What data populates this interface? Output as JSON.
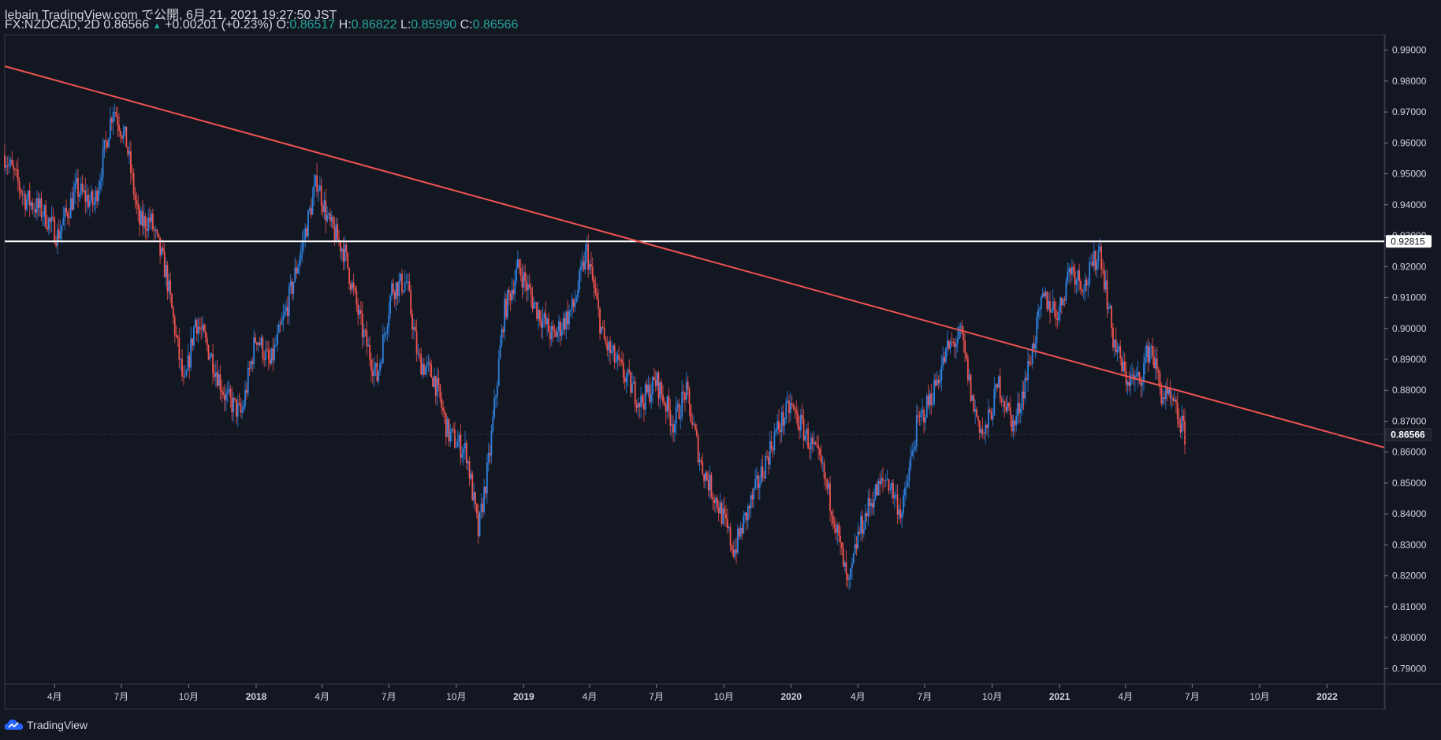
{
  "header": {
    "publish_line": "lebain TradingView.com で公開, 6月 21, 2021 19:27:50 JST",
    "symbol": "FX:NZDCAD, 2D",
    "last": "0.86566",
    "up_arrow": "▲",
    "change": "+0.00201 (+0.23%)",
    "o_label": "O:",
    "o_value": "0.86517",
    "h_label": "H:",
    "h_value": "0.86822",
    "l_label": "L:",
    "l_value": "0.85990",
    "c_label": "C:",
    "c_value": "0.86566"
  },
  "footer": {
    "brand": "TradingView",
    "logo_icon": "tradingview-logo-icon"
  },
  "colors": {
    "background": "#131722",
    "up": "#2f82e0",
    "down": "#ef5350",
    "trendline": "#ef5350",
    "hline": "#ffffff",
    "text": "#d1d4dc"
  },
  "chart_data": {
    "type": "candlestick",
    "ylim": [
      0.785,
      0.995
    ],
    "xlim": [
      "2017-01-23",
      "2022-03-20"
    ],
    "price_ticks": [
      "0.99000",
      "0.98000",
      "0.97000",
      "0.96000",
      "0.95000",
      "0.94000",
      "0.93000",
      "0.92000",
      "0.91000",
      "0.90000",
      "0.89000",
      "0.88000",
      "0.87000",
      "0.86000",
      "0.85000",
      "0.84000",
      "0.83000",
      "0.82000",
      "0.81000",
      "0.80000",
      "0.79000"
    ],
    "time_ticks": [
      {
        "label": "4月",
        "date": "2017-04-01",
        "bold": false
      },
      {
        "label": "7月",
        "date": "2017-07-01",
        "bold": false
      },
      {
        "label": "10月",
        "date": "2017-10-01",
        "bold": false
      },
      {
        "label": "2018",
        "date": "2018-01-01",
        "bold": true
      },
      {
        "label": "4月",
        "date": "2018-04-01",
        "bold": false
      },
      {
        "label": "7月",
        "date": "2018-07-01",
        "bold": false
      },
      {
        "label": "10月",
        "date": "2018-10-01",
        "bold": false
      },
      {
        "label": "2019",
        "date": "2019-01-01",
        "bold": true
      },
      {
        "label": "4月",
        "date": "2019-04-01",
        "bold": false
      },
      {
        "label": "7月",
        "date": "2019-07-01",
        "bold": false
      },
      {
        "label": "10月",
        "date": "2019-10-01",
        "bold": false
      },
      {
        "label": "2020",
        "date": "2020-01-01",
        "bold": true
      },
      {
        "label": "4月",
        "date": "2020-04-01",
        "bold": false
      },
      {
        "label": "7月",
        "date": "2020-07-01",
        "bold": false
      },
      {
        "label": "10月",
        "date": "2020-10-01",
        "bold": false
      },
      {
        "label": "2021",
        "date": "2021-01-01",
        "bold": true
      },
      {
        "label": "4月",
        "date": "2021-04-01",
        "bold": false
      },
      {
        "label": "7月",
        "date": "2021-07-01",
        "bold": false
      },
      {
        "label": "10月",
        "date": "2021-10-01",
        "bold": false
      },
      {
        "label": "2022",
        "date": "2022-01-01",
        "bold": true
      }
    ],
    "horizontal_line": {
      "price": 0.92815,
      "label": "0.92815"
    },
    "last_price": {
      "price": 0.86566,
      "label": "0.86566"
    },
    "trendline": [
      {
        "date": "2017-01-23",
        "price": 0.9848
      },
      {
        "date": "2022-03-20",
        "price": 0.8615
      }
    ],
    "close_path": [
      {
        "date": "2017-01-23",
        "price": 0.956
      },
      {
        "date": "2017-02-20",
        "price": 0.942
      },
      {
        "date": "2017-03-15",
        "price": 0.938
      },
      {
        "date": "2017-04-05",
        "price": 0.93
      },
      {
        "date": "2017-05-01",
        "price": 0.945
      },
      {
        "date": "2017-05-25",
        "price": 0.94
      },
      {
        "date": "2017-06-20",
        "price": 0.972
      },
      {
        "date": "2017-07-08",
        "price": 0.96
      },
      {
        "date": "2017-07-25",
        "price": 0.934
      },
      {
        "date": "2017-08-10",
        "price": 0.935
      },
      {
        "date": "2017-08-31",
        "price": 0.918
      },
      {
        "date": "2017-09-25",
        "price": 0.88
      },
      {
        "date": "2017-10-10",
        "price": 0.903
      },
      {
        "date": "2017-10-30",
        "price": 0.892
      },
      {
        "date": "2017-11-20",
        "price": 0.878
      },
      {
        "date": "2017-12-12",
        "price": 0.872
      },
      {
        "date": "2018-01-01",
        "price": 0.898
      },
      {
        "date": "2018-01-20",
        "price": 0.888
      },
      {
        "date": "2018-02-10",
        "price": 0.905
      },
      {
        "date": "2018-03-05",
        "price": 0.927
      },
      {
        "date": "2018-03-25",
        "price": 0.948
      },
      {
        "date": "2018-04-10",
        "price": 0.934
      },
      {
        "date": "2018-05-01",
        "price": 0.925
      },
      {
        "date": "2018-05-25",
        "price": 0.9
      },
      {
        "date": "2018-06-15",
        "price": 0.884
      },
      {
        "date": "2018-07-05",
        "price": 0.913
      },
      {
        "date": "2018-07-25",
        "price": 0.915
      },
      {
        "date": "2018-08-10",
        "price": 0.89
      },
      {
        "date": "2018-09-01",
        "price": 0.884
      },
      {
        "date": "2018-09-20",
        "price": 0.866
      },
      {
        "date": "2018-10-15",
        "price": 0.86
      },
      {
        "date": "2018-10-31",
        "price": 0.834
      },
      {
        "date": "2018-11-15",
        "price": 0.858
      },
      {
        "date": "2018-12-05",
        "price": 0.905
      },
      {
        "date": "2018-12-25",
        "price": 0.92
      },
      {
        "date": "2019-01-15",
        "price": 0.908
      },
      {
        "date": "2019-02-10",
        "price": 0.897
      },
      {
        "date": "2019-03-10",
        "price": 0.907
      },
      {
        "date": "2019-03-28",
        "price": 0.925
      },
      {
        "date": "2019-04-20",
        "price": 0.896
      },
      {
        "date": "2019-05-15",
        "price": 0.886
      },
      {
        "date": "2019-06-10",
        "price": 0.876
      },
      {
        "date": "2019-07-01",
        "price": 0.883
      },
      {
        "date": "2019-07-25",
        "price": 0.869
      },
      {
        "date": "2019-08-10",
        "price": 0.88
      },
      {
        "date": "2019-08-31",
        "price": 0.856
      },
      {
        "date": "2019-09-25",
        "price": 0.842
      },
      {
        "date": "2019-10-15",
        "price": 0.828
      },
      {
        "date": "2019-10-31",
        "price": 0.839
      },
      {
        "date": "2019-11-20",
        "price": 0.852
      },
      {
        "date": "2019-12-10",
        "price": 0.866
      },
      {
        "date": "2019-12-31",
        "price": 0.875
      },
      {
        "date": "2020-01-20",
        "price": 0.866
      },
      {
        "date": "2020-02-10",
        "price": 0.856
      },
      {
        "date": "2020-02-28",
        "price": 0.84
      },
      {
        "date": "2020-03-19",
        "price": 0.815
      },
      {
        "date": "2020-04-01",
        "price": 0.833
      },
      {
        "date": "2020-04-20",
        "price": 0.845
      },
      {
        "date": "2020-05-10",
        "price": 0.852
      },
      {
        "date": "2020-05-31",
        "price": 0.84
      },
      {
        "date": "2020-06-20",
        "price": 0.868
      },
      {
        "date": "2020-07-10",
        "price": 0.878
      },
      {
        "date": "2020-08-01",
        "price": 0.893
      },
      {
        "date": "2020-08-20",
        "price": 0.898
      },
      {
        "date": "2020-09-05",
        "price": 0.875
      },
      {
        "date": "2020-09-20",
        "price": 0.865
      },
      {
        "date": "2020-10-10",
        "price": 0.882
      },
      {
        "date": "2020-10-31",
        "price": 0.868
      },
      {
        "date": "2020-11-20",
        "price": 0.888
      },
      {
        "date": "2020-12-10",
        "price": 0.91
      },
      {
        "date": "2020-12-31",
        "price": 0.905
      },
      {
        "date": "2021-01-15",
        "price": 0.92
      },
      {
        "date": "2021-02-05",
        "price": 0.914
      },
      {
        "date": "2021-02-25",
        "price": 0.926
      },
      {
        "date": "2021-03-15",
        "price": 0.897
      },
      {
        "date": "2021-04-01",
        "price": 0.884
      },
      {
        "date": "2021-04-20",
        "price": 0.883
      },
      {
        "date": "2021-05-05",
        "price": 0.895
      },
      {
        "date": "2021-05-20",
        "price": 0.879
      },
      {
        "date": "2021-06-05",
        "price": 0.875
      },
      {
        "date": "2021-06-21",
        "price": 0.86566
      }
    ]
  }
}
